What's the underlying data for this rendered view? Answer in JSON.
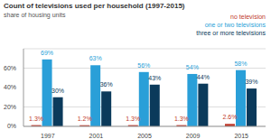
{
  "chart_data": {
    "type": "bar",
    "title": "Count of televisions used per household (1997-2015)",
    "subtitle": "share of housing units",
    "categories": [
      "1997",
      "2001",
      "2005",
      "2009",
      "2015"
    ],
    "series": [
      {
        "name": "no television",
        "color": "#c0392b",
        "values": [
          1.3,
          1.2,
          1.3,
          1.3,
          2.6
        ],
        "value_labels": [
          "1.3%",
          "1.2%",
          "1.3%",
          "1.3%",
          "2.6%"
        ]
      },
      {
        "name": "one or two televisions",
        "color": "#2a9fd8",
        "values": [
          69,
          63,
          56,
          54,
          58
        ],
        "value_labels": [
          "69%",
          "63%",
          "56%",
          "54%",
          "58%"
        ]
      },
      {
        "name": "three or more televisions",
        "color": "#0b3a5b",
        "values": [
          30,
          36,
          43,
          44,
          39
        ],
        "value_labels": [
          "30%",
          "36%",
          "43%",
          "44%",
          "39%"
        ]
      }
    ],
    "ylim": [
      0,
      80
    ],
    "yticks": [
      {
        "value": 0,
        "label": "0%"
      },
      {
        "value": 20,
        "label": "20%"
      },
      {
        "value": 40,
        "label": "40%"
      },
      {
        "value": 60,
        "label": "60%"
      }
    ],
    "grid": true,
    "legend": "upper right",
    "data_labels": true
  }
}
